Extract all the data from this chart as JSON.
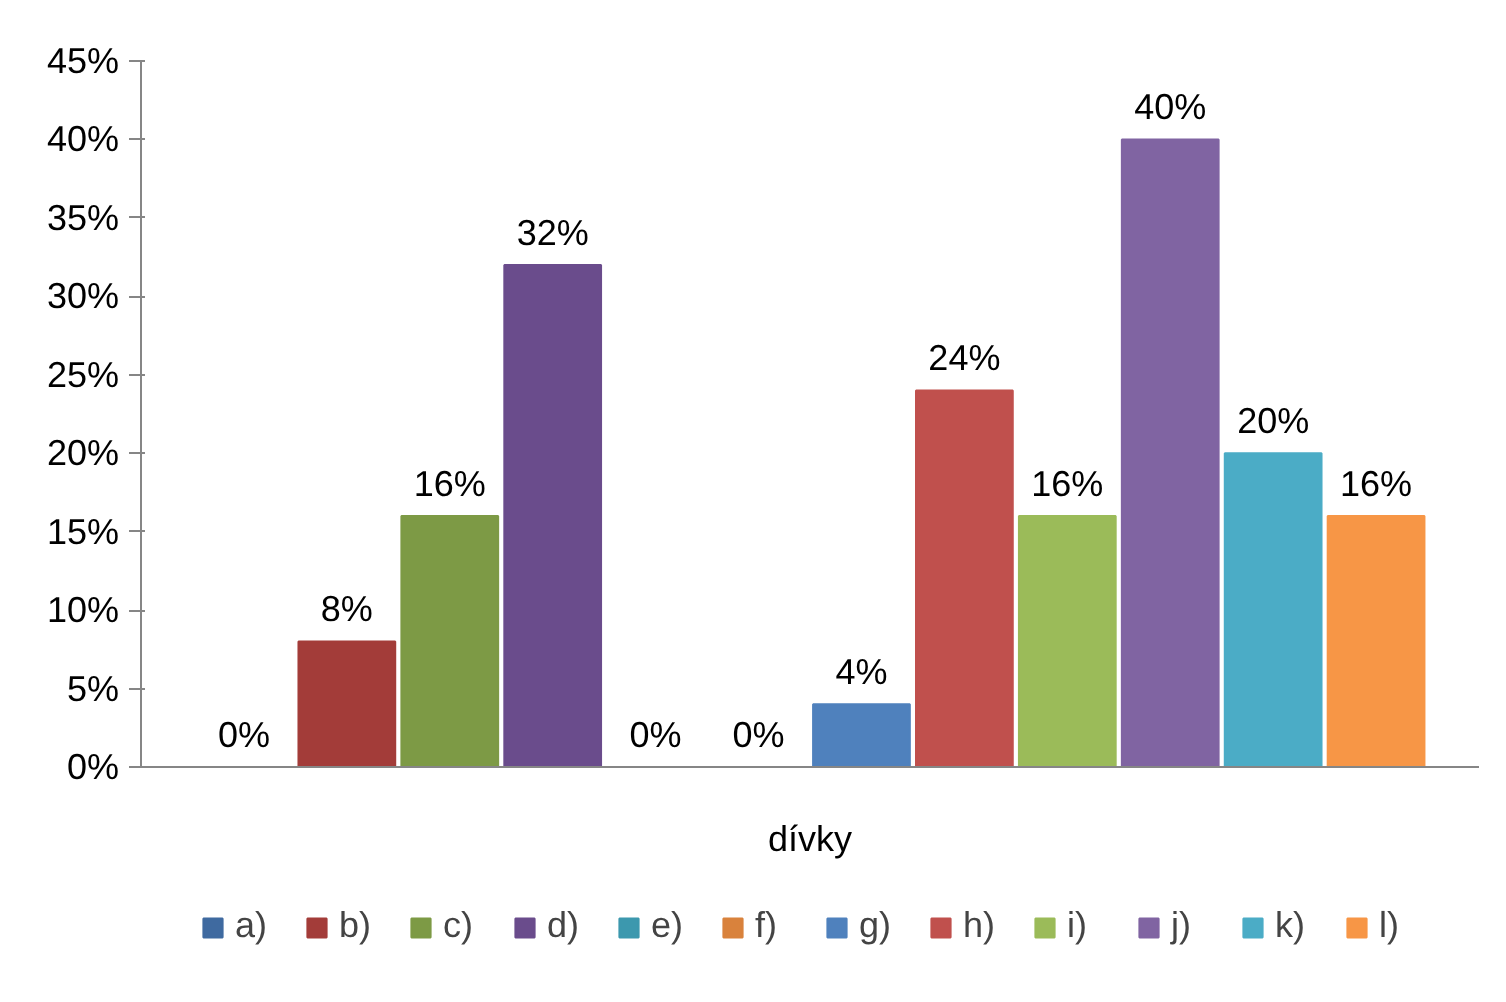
{
  "chart_data": {
    "type": "bar",
    "categories": [
      "dívky"
    ],
    "ylim": [
      0,
      45
    ],
    "yticks": [
      {
        "value": 0,
        "label": "0%"
      },
      {
        "value": 5,
        "label": "5%"
      },
      {
        "value": 10,
        "label": "10%"
      },
      {
        "value": 15,
        "label": "15%"
      },
      {
        "value": 20,
        "label": "20%"
      },
      {
        "value": 25,
        "label": "25%"
      },
      {
        "value": 30,
        "label": "30%"
      },
      {
        "value": 35,
        "label": "35%"
      },
      {
        "value": 40,
        "label": "40%"
      },
      {
        "value": 45,
        "label": "45%"
      }
    ],
    "grid": false,
    "legend": "bottom",
    "series": [
      {
        "name": "a)",
        "color": "#3f6aa0",
        "values": [
          0
        ],
        "value_labels": [
          "0%"
        ]
      },
      {
        "name": "b)",
        "color": "#a33c39",
        "values": [
          8
        ],
        "value_labels": [
          "8%"
        ]
      },
      {
        "name": "c)",
        "color": "#7d9a45",
        "values": [
          16
        ],
        "value_labels": [
          "16%"
        ]
      },
      {
        "name": "d)",
        "color": "#6a4c8c",
        "values": [
          32
        ],
        "value_labels": [
          "32%"
        ]
      },
      {
        "name": "e)",
        "color": "#3c98ae",
        "values": [
          0
        ],
        "value_labels": [
          "0%"
        ]
      },
      {
        "name": "f)",
        "color": "#d9823c",
        "values": [
          0
        ],
        "value_labels": [
          "0%"
        ]
      },
      {
        "name": "g)",
        "color": "#4f81bd",
        "values": [
          4
        ],
        "value_labels": [
          "4%"
        ]
      },
      {
        "name": "h)",
        "color": "#c0504d",
        "values": [
          24
        ],
        "value_labels": [
          "24%"
        ]
      },
      {
        "name": "i)",
        "color": "#9bbb59",
        "values": [
          16
        ],
        "value_labels": [
          "16%"
        ]
      },
      {
        "name": "j)",
        "color": "#8064a2",
        "values": [
          40
        ],
        "value_labels": [
          "40%"
        ]
      },
      {
        "name": "k)",
        "color": "#4bacc6",
        "values": [
          20
        ],
        "value_labels": [
          "20%"
        ]
      },
      {
        "name": "l)",
        "color": "#f79646",
        "values": [
          16
        ],
        "value_labels": [
          "16%"
        ]
      }
    ]
  }
}
